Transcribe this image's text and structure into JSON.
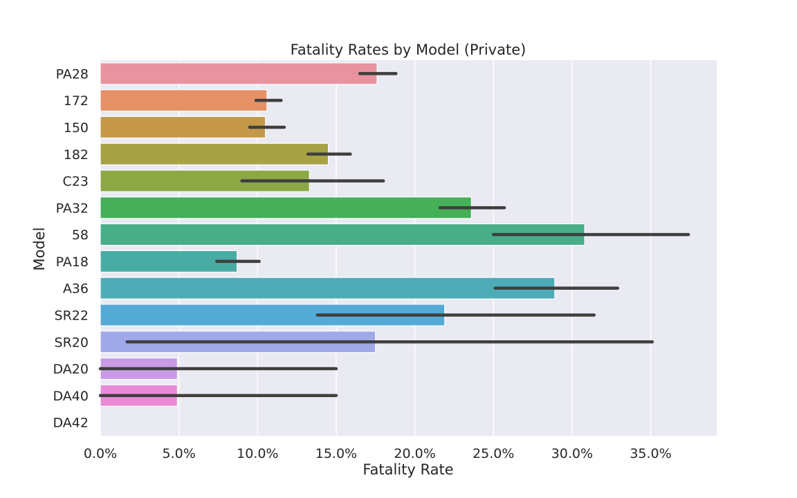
{
  "chart_data": {
    "type": "bar",
    "orientation": "horizontal",
    "title": "Fatality Rates by Model (Private)",
    "xlabel": "Fatality Rate",
    "ylabel": "Model",
    "xlim": [
      0,
      0.392
    ],
    "x_ticks": [
      0,
      0.05,
      0.1,
      0.15,
      0.2,
      0.25,
      0.3,
      0.35
    ],
    "x_tick_labels": [
      "0.0%",
      "5.0%",
      "10.0%",
      "15.0%",
      "20.0%",
      "25.0%",
      "30.0%",
      "35.0%"
    ],
    "grid": true,
    "background": "#eaeaf2",
    "categories": [
      "PA28",
      "172",
      "150",
      "182",
      "C23",
      "PA32",
      "58",
      "PA18",
      "A36",
      "SR22",
      "SR20",
      "DA20",
      "DA40",
      "DA42"
    ],
    "values": [
      0.176,
      0.106,
      0.105,
      0.145,
      0.133,
      0.236,
      0.308,
      0.087,
      0.289,
      0.219,
      0.175,
      0.049,
      0.049,
      0.0
    ],
    "error_low": [
      0.165,
      0.099,
      0.095,
      0.132,
      0.09,
      0.216,
      0.25,
      0.074,
      0.251,
      0.138,
      0.017,
      0.0,
      0.0,
      null
    ],
    "error_high": [
      0.188,
      0.115,
      0.117,
      0.159,
      0.18,
      0.257,
      0.374,
      0.101,
      0.329,
      0.314,
      0.351,
      0.15,
      0.15,
      null
    ],
    "colors": [
      "#e8939f",
      "#e79166",
      "#c49848",
      "#a7a244",
      "#8ba844",
      "#45b058",
      "#47ae89",
      "#49aca4",
      "#4dacb7",
      "#53aad5",
      "#a0a9e8",
      "#c99be6",
      "#e98ad7",
      "#e88cbb"
    ],
    "error_color": "#3f3f3f"
  }
}
